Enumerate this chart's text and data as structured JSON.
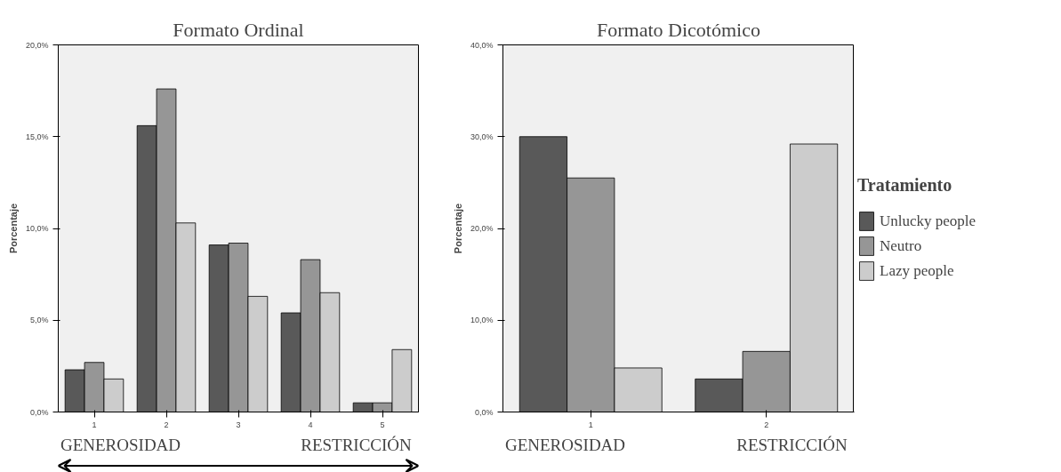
{
  "chart_data": [
    {
      "type": "bar",
      "title": "Formato Ordinal",
      "ylabel": "Porcentaje",
      "categories": [
        "1",
        "2",
        "3",
        "4",
        "5"
      ],
      "series": [
        {
          "color": "#595959",
          "values": [
            2.3,
            15.6,
            9.1,
            5.4,
            0.5
          ]
        },
        {
          "color": "#969696",
          "values": [
            2.7,
            17.6,
            9.2,
            8.3,
            0.5
          ]
        },
        {
          "color": "#cccccc",
          "values": [
            1.8,
            10.3,
            6.3,
            6.5,
            3.4
          ]
        }
      ],
      "ylim": [
        0,
        20
      ],
      "yticks": [
        {
          "value": 0,
          "label": "0,0%"
        },
        {
          "value": 5,
          "label": "5,0%"
        },
        {
          "value": 10,
          "label": "10,0%"
        },
        {
          "value": 15,
          "label": "15,0%"
        },
        {
          "value": 20,
          "label": "20,0%"
        }
      ],
      "annotations": [
        "GENEROSIDAD",
        "RESTRICCIÓN"
      ],
      "grid": false
    },
    {
      "type": "bar",
      "title": "Formato Dicotómico",
      "ylabel": "Porcentaje",
      "categories": [
        "1",
        "2"
      ],
      "legend_title": "Tratamiento",
      "series": [
        {
          "name": "Unlucky people",
          "color": "#595959",
          "values": [
            30.0,
            3.6
          ]
        },
        {
          "name": "Neutro",
          "color": "#969696",
          "values": [
            25.5,
            6.6
          ]
        },
        {
          "name": "Lazy people",
          "color": "#cccccc",
          "values": [
            4.8,
            29.2
          ]
        }
      ],
      "ylim": [
        0,
        40
      ],
      "yticks": [
        {
          "value": 0,
          "label": "0,0%"
        },
        {
          "value": 10,
          "label": "10,0%"
        },
        {
          "value": 20,
          "label": "20,0%"
        },
        {
          "value": 30,
          "label": "30,0%"
        },
        {
          "value": 40,
          "label": "40,0%"
        }
      ],
      "annotations": [
        "GENEROSIDAD",
        "RESTRICCIÓN"
      ],
      "grid": false,
      "legend": "right"
    }
  ]
}
